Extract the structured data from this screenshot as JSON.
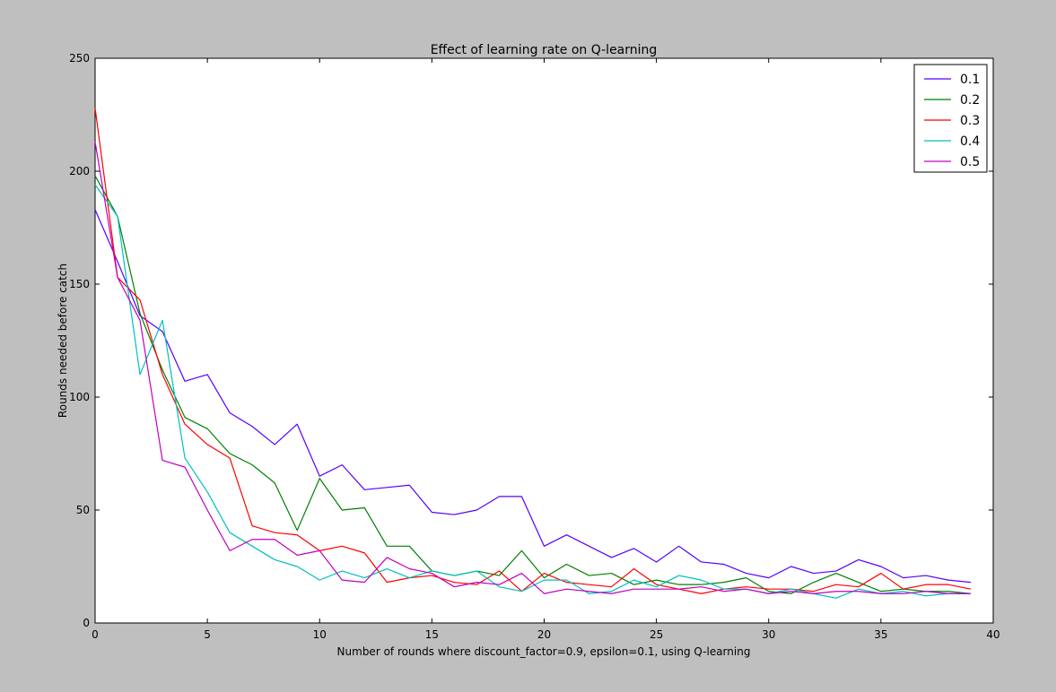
{
  "chart_data": {
    "type": "line",
    "title": "Effect of learning rate on Q-learning",
    "xlabel": "Number of rounds where discount_factor=0.9, epsilon=0.1, using Q-learning",
    "ylabel": "Rounds needed before catch",
    "xlim": [
      0,
      40
    ],
    "ylim": [
      0,
      250
    ],
    "xticks": [
      0,
      5,
      10,
      15,
      20,
      25,
      30,
      35,
      40
    ],
    "yticks": [
      0,
      50,
      100,
      150,
      200,
      250
    ],
    "grid": false,
    "legend_position": "top-right",
    "x": [
      0,
      1,
      2,
      3,
      4,
      5,
      6,
      7,
      8,
      9,
      10,
      11,
      12,
      13,
      14,
      15,
      16,
      17,
      18,
      19,
      20,
      21,
      22,
      23,
      24,
      25,
      26,
      27,
      28,
      29,
      30,
      31,
      32,
      33,
      34,
      35,
      36,
      37,
      38,
      39
    ],
    "series": [
      {
        "name": "0.1",
        "color": "#5500ff",
        "values": [
          183,
          160,
          136,
          129,
          107,
          110,
          93,
          87,
          79,
          88,
          65,
          70,
          59,
          60,
          61,
          49,
          48,
          50,
          56,
          56,
          34,
          39,
          34,
          29,
          33,
          27,
          34,
          27,
          26,
          22,
          20,
          25,
          22,
          23,
          28,
          25,
          20,
          21,
          19,
          18
        ]
      },
      {
        "name": "0.2",
        "color": "#008000",
        "values": [
          198,
          180,
          137,
          112,
          91,
          86,
          75,
          70,
          62,
          41,
          64,
          50,
          51,
          34,
          34,
          23,
          21,
          23,
          21,
          32,
          20,
          26,
          21,
          22,
          17,
          19,
          17,
          17,
          18,
          20,
          14,
          13,
          18,
          22,
          18,
          14,
          15,
          14,
          14,
          13
        ]
      },
      {
        "name": "0.3",
        "color": "#ff0000",
        "values": [
          228,
          153,
          143,
          110,
          88,
          79,
          73,
          43,
          40,
          39,
          32,
          34,
          31,
          18,
          20,
          21,
          18,
          17,
          23,
          14,
          22,
          18,
          17,
          16,
          24,
          17,
          15,
          13,
          15,
          16,
          15,
          15,
          14,
          17,
          16,
          22,
          15,
          17,
          17,
          15
        ]
      },
      {
        "name": "0.4",
        "color": "#00bfbf",
        "values": [
          194,
          180,
          110,
          134,
          73,
          58,
          40,
          34,
          28,
          25,
          19,
          23,
          20,
          24,
          20,
          23,
          21,
          23,
          16,
          14,
          19,
          19,
          13,
          14,
          19,
          16,
          21,
          19,
          15,
          15,
          13,
          15,
          13,
          11,
          15,
          13,
          14,
          12,
          13,
          13
        ]
      },
      {
        "name": "0.5",
        "color": "#bf00bf",
        "values": [
          213,
          153,
          134,
          72,
          69,
          50,
          32,
          37,
          37,
          30,
          32,
          19,
          18,
          29,
          24,
          22,
          16,
          18,
          17,
          22,
          13,
          15,
          14,
          13,
          15,
          15,
          15,
          16,
          14,
          15,
          13,
          14,
          13,
          14,
          14,
          13,
          13,
          14,
          13,
          13
        ]
      }
    ]
  }
}
